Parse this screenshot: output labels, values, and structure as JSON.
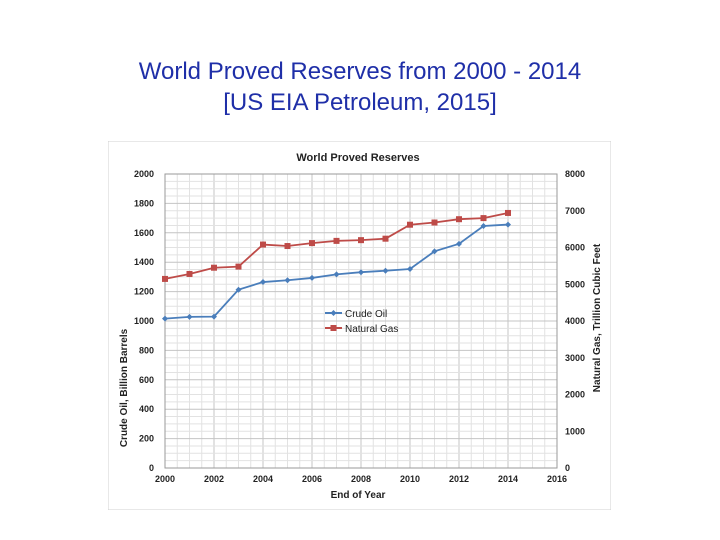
{
  "slide": {
    "title_line1": "World Proved Reserves from 2000 - 2014",
    "title_line2": "[US EIA Petroleum, 2015]"
  },
  "chart_data": {
    "type": "line",
    "title": "World Proved Reserves",
    "xlabel": "End of Year",
    "ylabel_left": "Crude Oil, Billion Barrels",
    "ylabel_right": "Natural Gas, Trillion Cubic Feet",
    "xlim": [
      2000,
      2016
    ],
    "ylim_left": [
      0,
      2000
    ],
    "ylim_right": [
      0,
      8000
    ],
    "x_ticks": [
      "2000",
      "2002",
      "2004",
      "2006",
      "2008",
      "2010",
      "2012",
      "2014",
      "2016"
    ],
    "y_ticks_left": [
      "0",
      "200",
      "400",
      "600",
      "800",
      "1000",
      "1200",
      "1400",
      "1600",
      "1800",
      "2000"
    ],
    "y_ticks_right": [
      "0",
      "1000",
      "2000",
      "3000",
      "4000",
      "5000",
      "6000",
      "7000",
      "8000"
    ],
    "legend_position": "center",
    "grid": true,
    "series": [
      {
        "name": "Crude Oil",
        "axis": "left",
        "color": "#4a7ebb",
        "marker": "diamond",
        "x": [
          2000,
          2001,
          2002,
          2003,
          2004,
          2005,
          2006,
          2007,
          2008,
          2009,
          2010,
          2011,
          2012,
          2013,
          2014
        ],
        "values": [
          1016,
          1028,
          1030,
          1213,
          1265,
          1277,
          1293,
          1317,
          1332,
          1342,
          1354,
          1474,
          1525,
          1646,
          1656
        ]
      },
      {
        "name": "Natural Gas",
        "axis": "right",
        "color": "#be4b48",
        "marker": "square",
        "x": [
          2000,
          2001,
          2002,
          2003,
          2004,
          2005,
          2006,
          2007,
          2008,
          2009,
          2010,
          2011,
          2012,
          2013,
          2014
        ],
        "values": [
          5145,
          5280,
          5450,
          5480,
          6080,
          6040,
          6120,
          6180,
          6200,
          6240,
          6620,
          6680,
          6770,
          6800,
          6940
        ]
      }
    ]
  }
}
